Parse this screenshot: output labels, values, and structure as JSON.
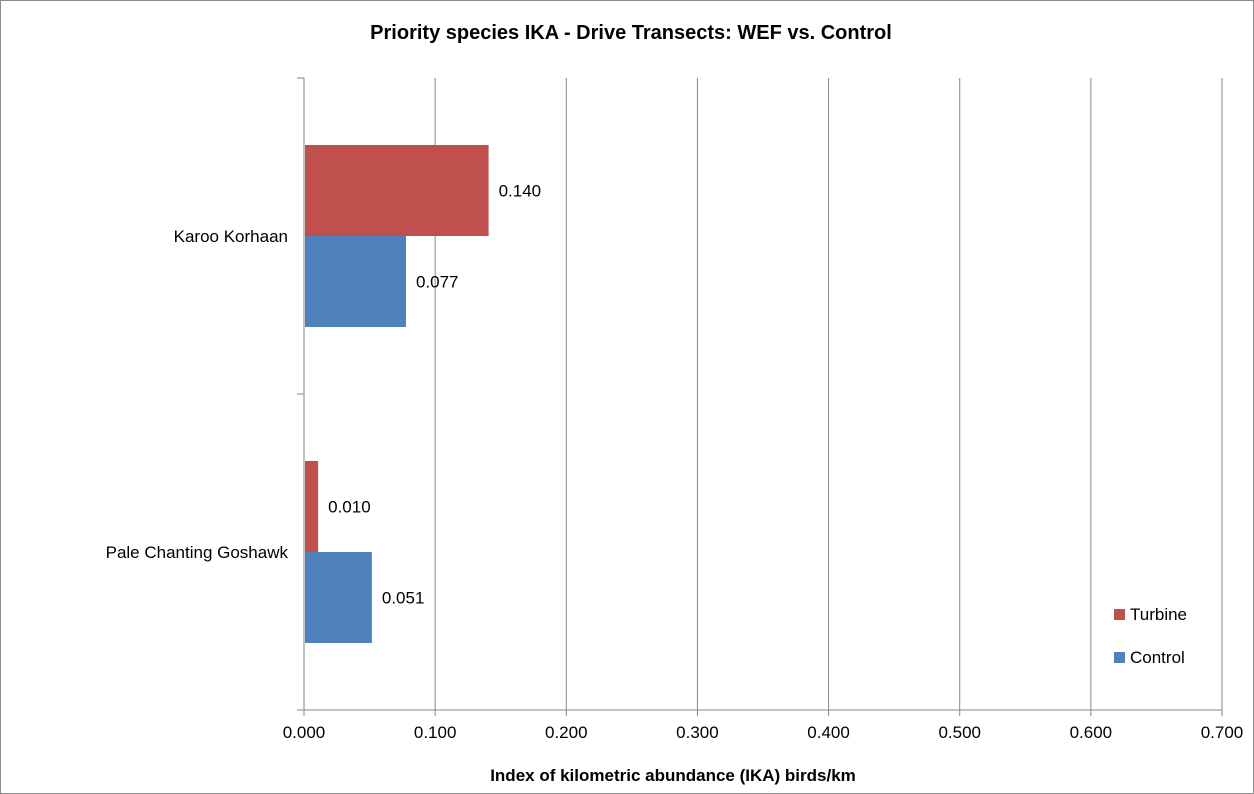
{
  "chart_data": {
    "type": "bar",
    "orientation": "horizontal",
    "title": "Priority species IKA - Drive Transects: WEF vs. Control",
    "xlabel": "Index of kilometric abundance (IKA) birds/km",
    "ylabel": "",
    "categories": [
      "Karoo Korhaan",
      "Pale Chanting Goshawk"
    ],
    "series": [
      {
        "name": "Turbine",
        "color": "#c0504d",
        "values": [
          0.14,
          0.01
        ],
        "labels": [
          "0.140",
          "0.010"
        ]
      },
      {
        "name": "Control",
        "color": "#4f81bd",
        "values": [
          0.077,
          0.051
        ],
        "labels": [
          "0.077",
          "0.051"
        ]
      }
    ],
    "xlim": [
      0,
      0.7
    ],
    "xticks": [
      "0.000",
      "0.100",
      "0.200",
      "0.300",
      "0.400",
      "0.500",
      "0.600",
      "0.700"
    ],
    "grid": "vertical",
    "legend": "bottom-right"
  }
}
